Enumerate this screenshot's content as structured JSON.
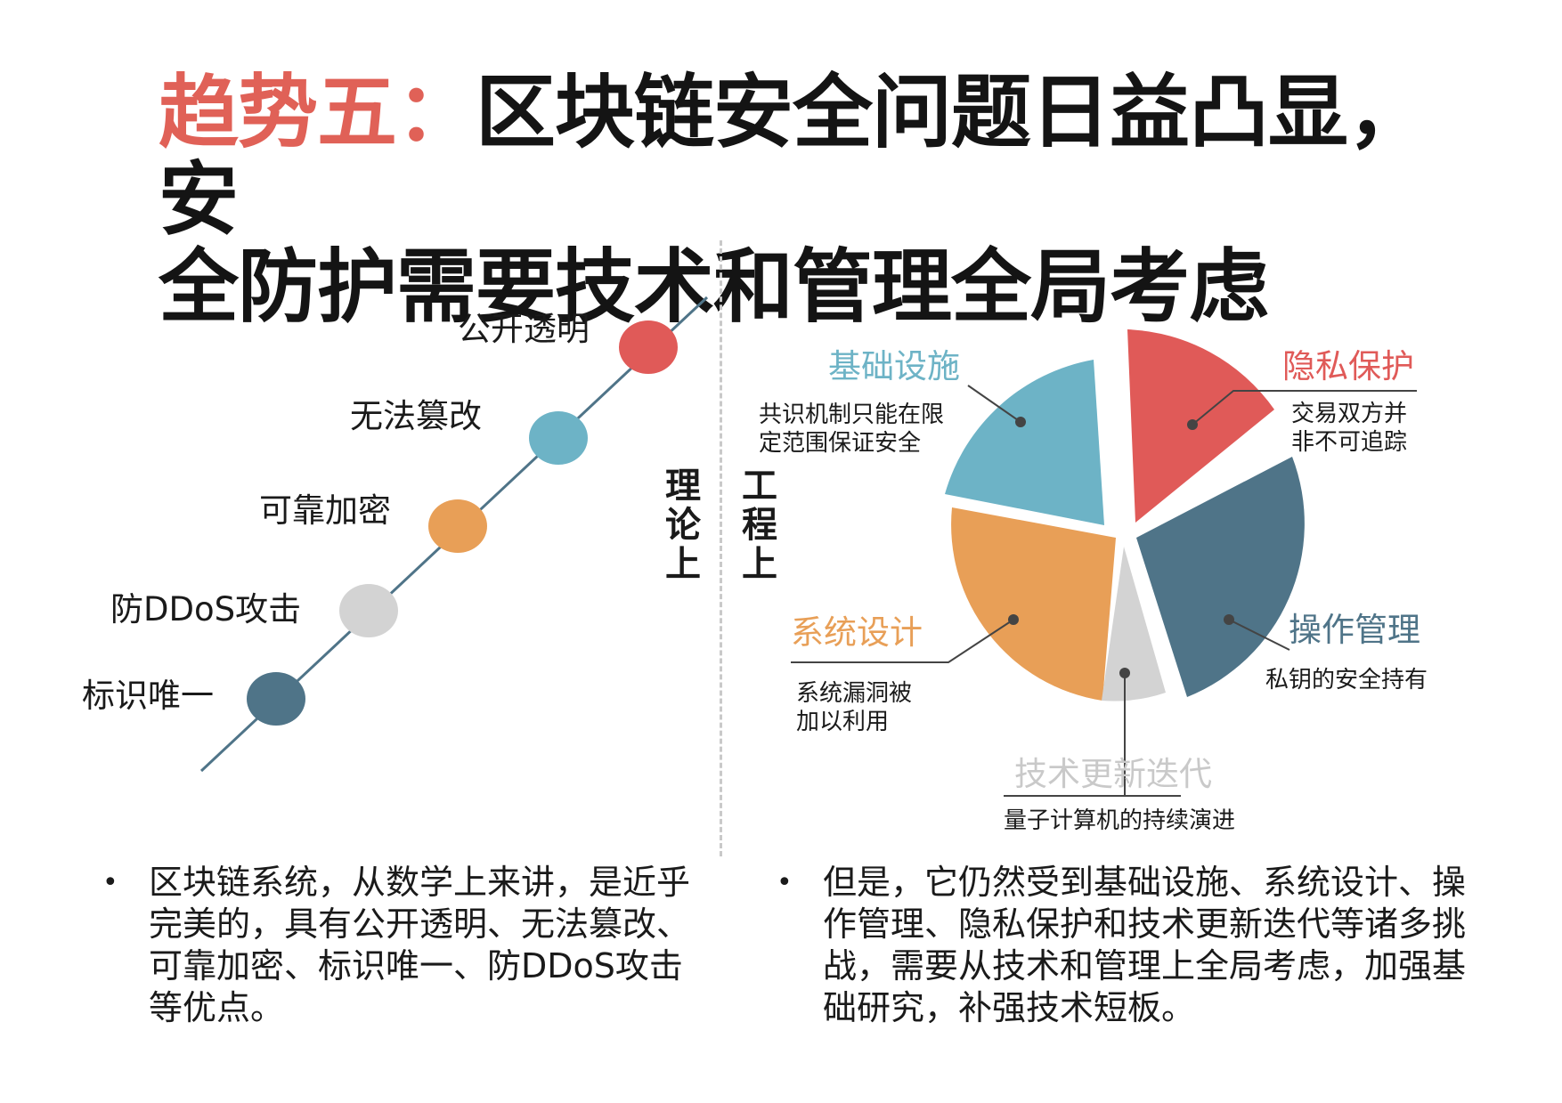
{
  "title": {
    "prefix": "趋势五：",
    "line1": "区块链安全问题日益凸显，安",
    "line2": "全防护需要技术和管理全局考虑"
  },
  "left": {
    "column_label": "理论上",
    "properties": [
      {
        "label": "公开透明",
        "color": "#e05a58"
      },
      {
        "label": "无法篡改",
        "color": "#6db3c6"
      },
      {
        "label": "可靠加密",
        "color": "#e89f57"
      },
      {
        "label": "防DDoS攻击",
        "color": "#d3d3d3"
      },
      {
        "label": "标识唯一",
        "color": "#4f7488"
      }
    ],
    "line_color": "#4f7488"
  },
  "right": {
    "column_label": "工程上",
    "segments": [
      {
        "title": "隐私保护",
        "desc": "交易双方并非不可追踪",
        "color": "#e05a58"
      },
      {
        "title": "基础设施",
        "desc": "共识机制只能在限定范围保证安全",
        "color": "#6db3c6"
      },
      {
        "title": "操作管理",
        "desc": "私钥的安全持有",
        "color": "#4f7488"
      },
      {
        "title": "系统设计",
        "desc": "系统漏洞被加以利用",
        "color": "#e89f57"
      },
      {
        "title": "技术更新迭代",
        "desc": "量子计算机的持续演进",
        "color": "#d3d3d3"
      }
    ]
  },
  "bullets": {
    "left": "区块链系统，从数学上来讲，是近乎完美的，具有公开透明、无法篡改、可靠加密、标识唯一、防DDoS攻击等优点。",
    "right": "但是，它仍然受到基础设施、系统设计、操作管理、隐私保护和技术更新迭代等诸多挑战，需要从技术和管理上全局考虑，加强基础研究，补强技术短板。"
  }
}
